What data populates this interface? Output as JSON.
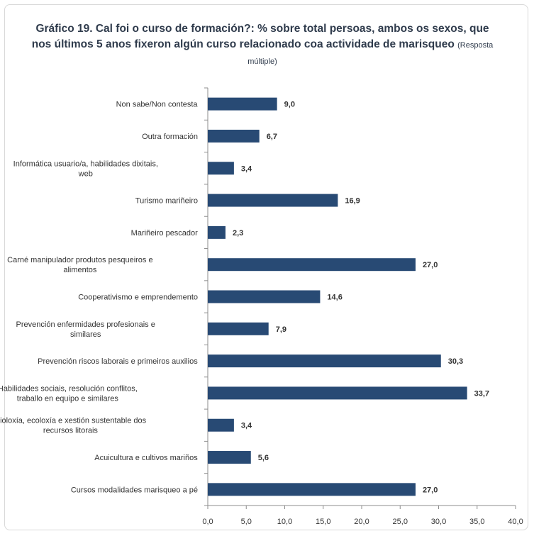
{
  "title": {
    "main": "Gráfico 19. Cal foi o curso de formación?: % sobre total persoas, ambos os sexos, que nos últimos 5 anos fixeron algún curso relacionado coa actividade de marisqueo",
    "note": "(Resposta múltiple)"
  },
  "chart_data": {
    "type": "bar",
    "orientation": "horizontal",
    "title": "Gráfico 19. Cal foi o curso de formación?: % sobre total persoas, ambos os sexos, que nos últimos 5 anos fixeron algún curso relacionado coa actividade de marisqueo (Resposta múltiple)",
    "categories": [
      [
        "Non sabe/Non contesta"
      ],
      [
        "Outra formación"
      ],
      [
        "Informática usuario/a, habilidades dixitais,",
        "web"
      ],
      [
        "Turismo mariñeiro"
      ],
      [
        "Mariñeiro pescador"
      ],
      [
        "Carné manipulador produtos pesqueiros e",
        "alimentos"
      ],
      [
        "Cooperativismo e emprendemento"
      ],
      [
        "Prevención enfermidades profesionais e",
        "similares"
      ],
      [
        "Prevención riscos laborais e primeiros auxilios"
      ],
      [
        "Habilidades sociais, resolución conflitos,",
        "traballo en equipo e similares"
      ],
      [
        "Bioloxía, ecoloxía e xestión sustentable dos",
        "recursos litorais"
      ],
      [
        "Acuicultura e cultivos mariños"
      ],
      [
        "Cursos modalidades marisqueo a pé"
      ]
    ],
    "values": [
      9.0,
      6.7,
      3.4,
      16.9,
      2.3,
      27.0,
      14.6,
      7.9,
      30.3,
      33.7,
      3.4,
      5.6,
      27.0
    ],
    "value_labels": [
      "9,0",
      "6,7",
      "3,4",
      "16,9",
      "2,3",
      "27,0",
      "14,6",
      "7,9",
      "30,3",
      "33,7",
      "3,4",
      "5,6",
      "27,0"
    ],
    "xlim": [
      0,
      40
    ],
    "xticks": [
      "0,0",
      "5,0",
      "10,0",
      "15,0",
      "20,0",
      "25,0",
      "30,0",
      "35,0",
      "40,0"
    ],
    "grid": false,
    "legend": "none",
    "bar_color": "#284a74"
  }
}
